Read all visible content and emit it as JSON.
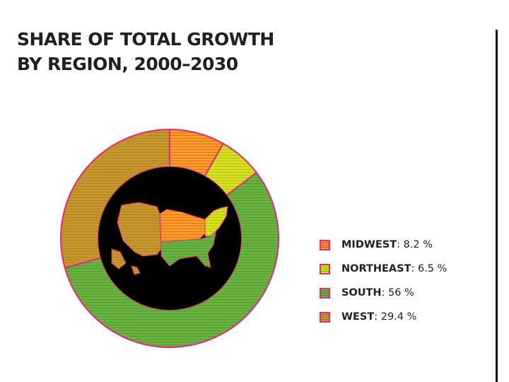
{
  "chart_data": {
    "type": "pie",
    "title_lines": [
      "SHARE OF TOTAL GROWTH",
      "BY REGION, 2000–2030"
    ],
    "slices": [
      {
        "name": "MIDWEST",
        "value": 8.2,
        "label": "8.2 %",
        "color": "#f7a21b",
        "stripe": "#e2297a"
      },
      {
        "name": "NORTHEAST",
        "value": 6.5,
        "label": "6.5 %",
        "color": "#d7e21a",
        "stripe": "#93a326"
      },
      {
        "name": "SOUTH",
        "value": 56,
        "label": "56 %",
        "color": "#6ab23e",
        "stripe": "#3f8a2e"
      },
      {
        "name": "WEST",
        "value": 29.4,
        "label": "29.4 %",
        "color": "#c8962a",
        "stripe": "#8f7a2a"
      }
    ],
    "outline_color": "#e2297a",
    "center_color": "#000000",
    "legend_placement": "right"
  }
}
